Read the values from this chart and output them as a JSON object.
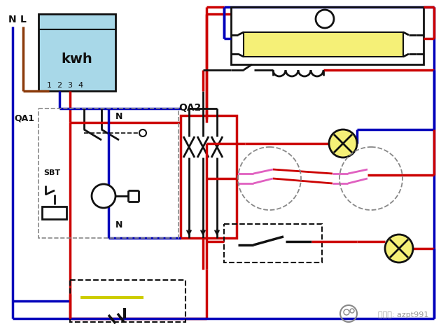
{
  "bg_color": "#ffffff",
  "red": "#cc0000",
  "blue": "#0000bb",
  "brown": "#8B3A0A",
  "black": "#111111",
  "gray": "#888888",
  "yellow_tube": "#f5f077",
  "cyan_box": "#a8d8e8",
  "pink": "#e060c0",
  "dark_yellow": "#cccc00",
  "kwh_label": "kwh",
  "terminals": [
    "1",
    "2",
    "3",
    "4"
  ],
  "N_label": "N",
  "L_label": "L",
  "QA1_label": "QA1",
  "QA2_label": "QA2",
  "SBT_label": "SBT",
  "watermark": "微信号: azpt991"
}
